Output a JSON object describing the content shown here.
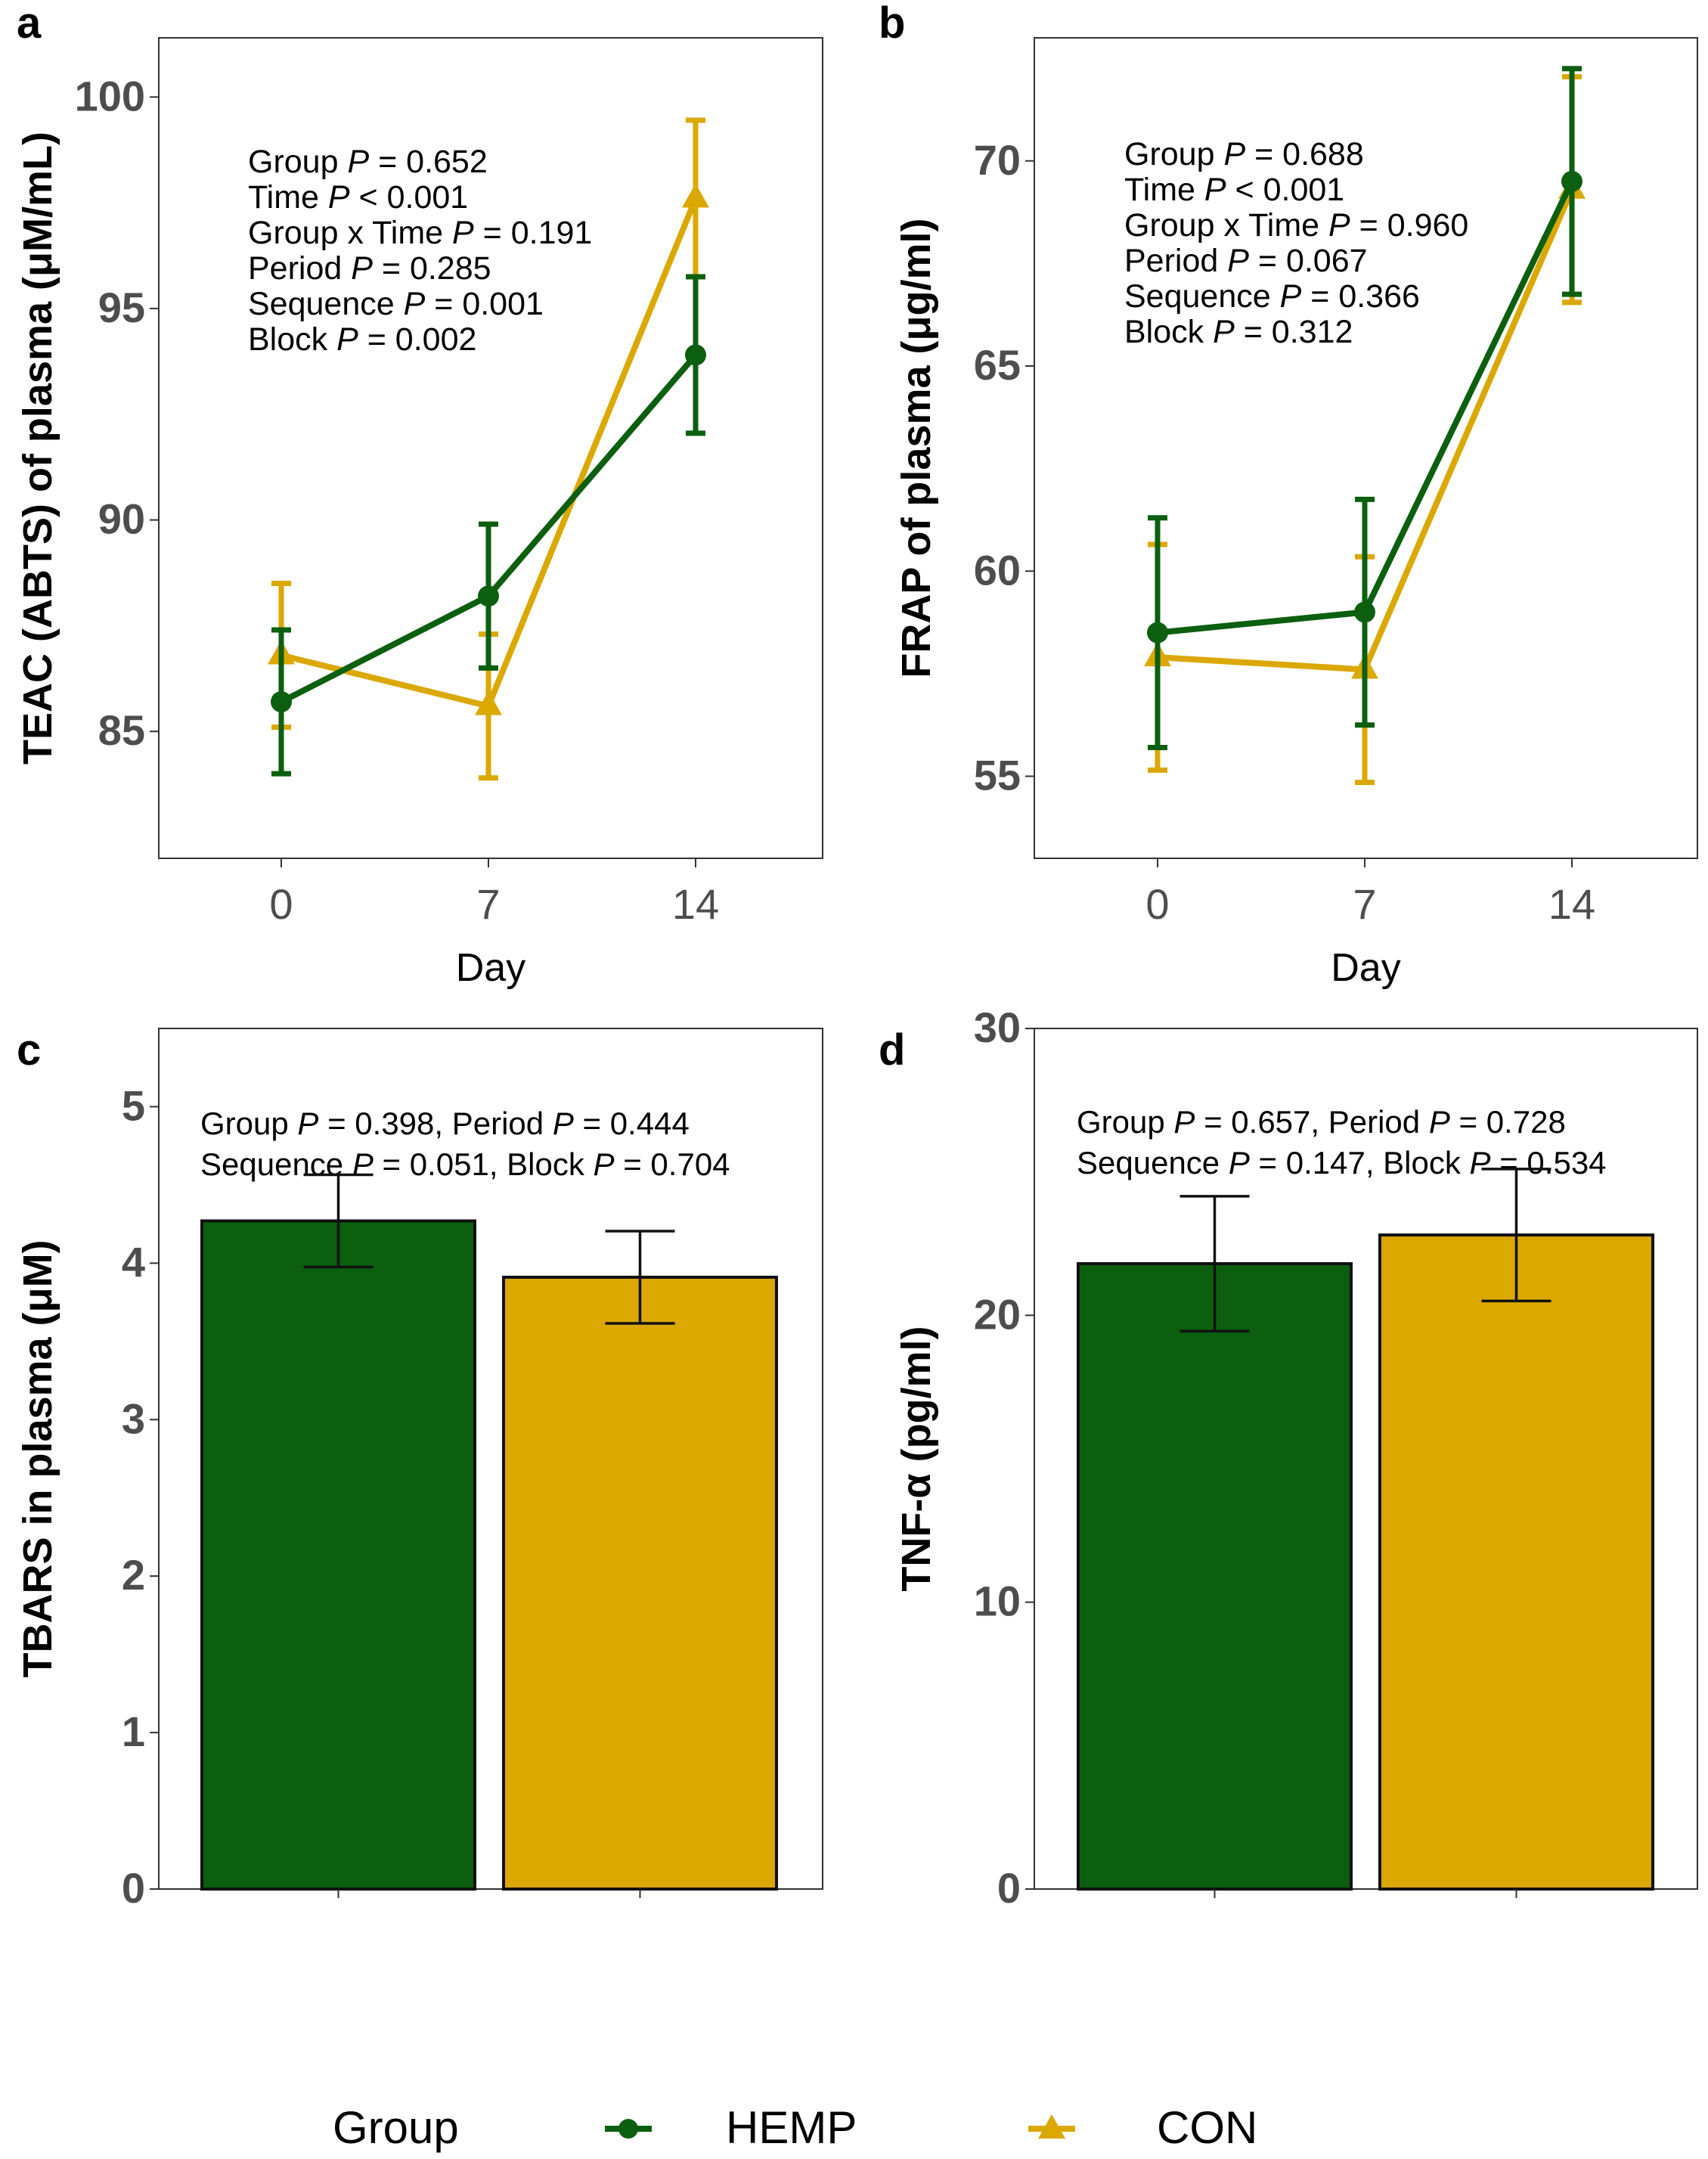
{
  "colors": {
    "hemp": "#0c5f0f",
    "con": "#dba800",
    "axis_text": "#4d4d4d",
    "frame": "#333333"
  },
  "legend": {
    "title": "Group",
    "entries": [
      {
        "label": "HEMP",
        "color": "#0c5f0f",
        "marker": "circle"
      },
      {
        "label": "CON",
        "color": "#dba800",
        "marker": "triangle"
      }
    ]
  },
  "chart_data": [
    {
      "panel": "a",
      "type": "line",
      "xlabel": "Day",
      "ylabel": "TEAC (ABTS) of plasma (μM/mL)",
      "x": [
        0,
        7,
        14
      ],
      "x_tick_labels": [
        "0",
        "7",
        "14"
      ],
      "ylim": [
        82,
        101.4
      ],
      "yticks": [
        85,
        90,
        95,
        100
      ],
      "series": [
        {
          "name": "HEMP",
          "values": [
            85.7,
            88.2,
            93.9
          ],
          "err": [
            1.7,
            1.7,
            1.85
          ]
        },
        {
          "name": "CON",
          "values": [
            86.8,
            85.6,
            97.6
          ],
          "err": [
            1.7,
            1.7,
            1.85
          ]
        }
      ],
      "annotation": [
        [
          {
            "t": "Group "
          },
          {
            "t": "P",
            "i": true
          },
          {
            "t": " = 0.652"
          }
        ],
        [
          {
            "t": "Time "
          },
          {
            "t": "P",
            "i": true
          },
          {
            "t": " < 0.001"
          }
        ],
        [
          {
            "t": "Group x Time "
          },
          {
            "t": "P",
            "i": true
          },
          {
            "t": " = 0.191"
          }
        ],
        [
          {
            "t": "Period "
          },
          {
            "t": "P",
            "i": true
          },
          {
            "t": " = 0.285"
          }
        ],
        [
          {
            "t": "Sequence "
          },
          {
            "t": "P",
            "i": true
          },
          {
            "t": " = 0.001"
          }
        ],
        [
          {
            "t": "Block "
          },
          {
            "t": "P",
            "i": true
          },
          {
            "t": " = 0.002"
          }
        ]
      ]
    },
    {
      "panel": "b",
      "type": "line",
      "xlabel": "Day",
      "ylabel": "FRAP of plasma  (μg/ml)",
      "x": [
        0,
        7,
        14
      ],
      "x_tick_labels": [
        "0",
        "7",
        "14"
      ],
      "ylim": [
        53,
        73
      ],
      "yticks": [
        55,
        60,
        65,
        70
      ],
      "series": [
        {
          "name": "HEMP",
          "values": [
            58.5,
            59.0,
            69.5
          ],
          "err": [
            2.8,
            2.75,
            2.75
          ]
        },
        {
          "name": "CON",
          "values": [
            57.9,
            57.6,
            69.3
          ],
          "err": [
            2.75,
            2.75,
            2.75
          ]
        }
      ],
      "annotation": [
        [
          {
            "t": "Group "
          },
          {
            "t": "P",
            "i": true
          },
          {
            "t": " = 0.688"
          }
        ],
        [
          {
            "t": "Time "
          },
          {
            "t": "P",
            "i": true
          },
          {
            "t": " < 0.001"
          }
        ],
        [
          {
            "t": "Group x Time "
          },
          {
            "t": "P",
            "i": true
          },
          {
            "t": " = 0.960"
          }
        ],
        [
          {
            "t": "Period "
          },
          {
            "t": "P",
            "i": true
          },
          {
            "t": " = 0.067"
          }
        ],
        [
          {
            "t": "Sequence "
          },
          {
            "t": "P",
            "i": true
          },
          {
            "t": " = 0.366"
          }
        ],
        [
          {
            "t": "Block "
          },
          {
            "t": "P",
            "i": true
          },
          {
            "t": " = 0.312"
          }
        ]
      ]
    },
    {
      "panel": "c",
      "type": "bar",
      "xlabel": "",
      "ylabel": "TBARS in plasma (μM)",
      "categories": [
        "HEMP",
        "CON"
      ],
      "values": [
        4.27,
        3.91
      ],
      "err": [
        0.295,
        0.295
      ],
      "ylim": [
        0,
        5.5
      ],
      "yticks": [
        0,
        1,
        2,
        3,
        4,
        5
      ],
      "annotation": [
        [
          {
            "t": "Group "
          },
          {
            "t": "P",
            "i": true
          },
          {
            "t": " = 0.398, Period "
          },
          {
            "t": "P",
            "i": true
          },
          {
            "t": " = 0.444"
          }
        ],
        [
          {
            "t": "Sequence "
          },
          {
            "t": "P",
            "i": true
          },
          {
            "t": " = 0.051, Block "
          },
          {
            "t": "P",
            "i": true
          },
          {
            "t": " = 0.704"
          }
        ]
      ]
    },
    {
      "panel": "d",
      "type": "bar",
      "xlabel": "",
      "ylabel": "TNF-α (pg/ml)",
      "categories": [
        "HEMP",
        "CON"
      ],
      "values": [
        21.8,
        22.8
      ],
      "err": [
        2.35,
        2.3
      ],
      "ylim": [
        0,
        30
      ],
      "yticks": [
        0,
        10,
        20,
        30
      ],
      "annotation": [
        [
          {
            "t": "Group "
          },
          {
            "t": "P",
            "i": true
          },
          {
            "t": " = 0.657, Period "
          },
          {
            "t": "P",
            "i": true
          },
          {
            "t": " = 0.728"
          }
        ],
        [
          {
            "t": "Sequence "
          },
          {
            "t": "P",
            "i": true
          },
          {
            "t": " = 0.147, Block "
          },
          {
            "t": "P",
            "i": true
          },
          {
            "t": " = 0.534"
          }
        ]
      ]
    }
  ]
}
